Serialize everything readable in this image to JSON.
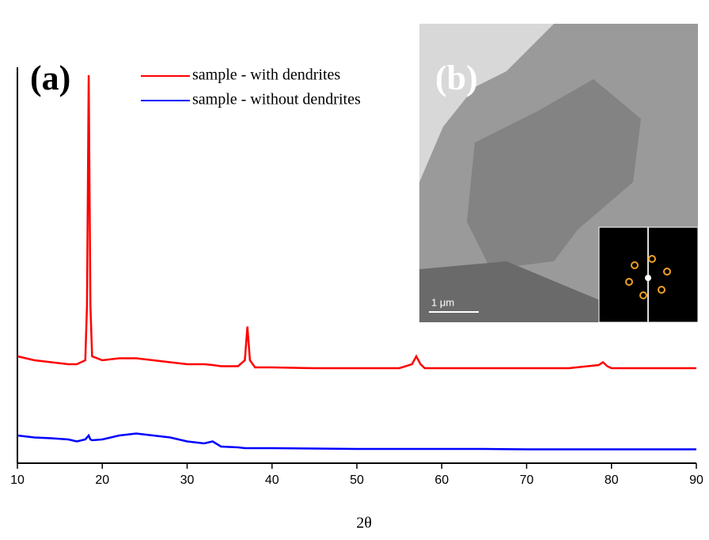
{
  "chart_data": {
    "type": "line",
    "xlabel": "2θ",
    "annotations": [
      "(a)",
      "(b)",
      "1 μm"
    ],
    "x": [
      10,
      12,
      14,
      16,
      17,
      18,
      18.2,
      18.4,
      18.6,
      18.8,
      20,
      22,
      24,
      26,
      28,
      30,
      32,
      33,
      34,
      36,
      36.8,
      37.1,
      37.4,
      38,
      40,
      45,
      50,
      55,
      56.5,
      57,
      57.5,
      58,
      60,
      65,
      70,
      75,
      78.5,
      79,
      79.5,
      80,
      85,
      90
    ],
    "series": [
      {
        "name": "sample - with dendrites",
        "color": "#ff0000",
        "values": [
          27,
          26,
          25.5,
          25,
          25,
          26,
          40,
          98,
          40,
          27,
          26,
          26.5,
          26.5,
          26,
          25.5,
          25,
          25,
          24.8,
          24.5,
          24.5,
          26,
          34.5,
          26,
          24.2,
          24.2,
          24,
          24,
          24,
          25,
          27,
          25,
          24,
          24,
          24,
          24,
          24,
          24.8,
          25.5,
          24.5,
          24,
          24,
          24
        ]
      },
      {
        "name": "sample - without dendrites",
        "color": "#0000ff",
        "values": [
          7,
          6.5,
          6.3,
          6,
          5.5,
          6,
          6.5,
          7,
          6,
          5.8,
          6,
          7,
          7.5,
          7,
          6.5,
          5.5,
          5,
          5.5,
          4.2,
          4,
          3.8,
          3.8,
          3.8,
          3.8,
          3.8,
          3.7,
          3.6,
          3.6,
          3.6,
          3.6,
          3.6,
          3.6,
          3.6,
          3.6,
          3.5,
          3.5,
          3.5,
          3.5,
          3.5,
          3.5,
          3.5,
          3.5
        ]
      }
    ],
    "xlim": [
      10,
      90
    ],
    "xticks": [
      10,
      20,
      30,
      40,
      50,
      60,
      70,
      80,
      90
    ],
    "ylim": [
      0,
      100
    ]
  }
}
